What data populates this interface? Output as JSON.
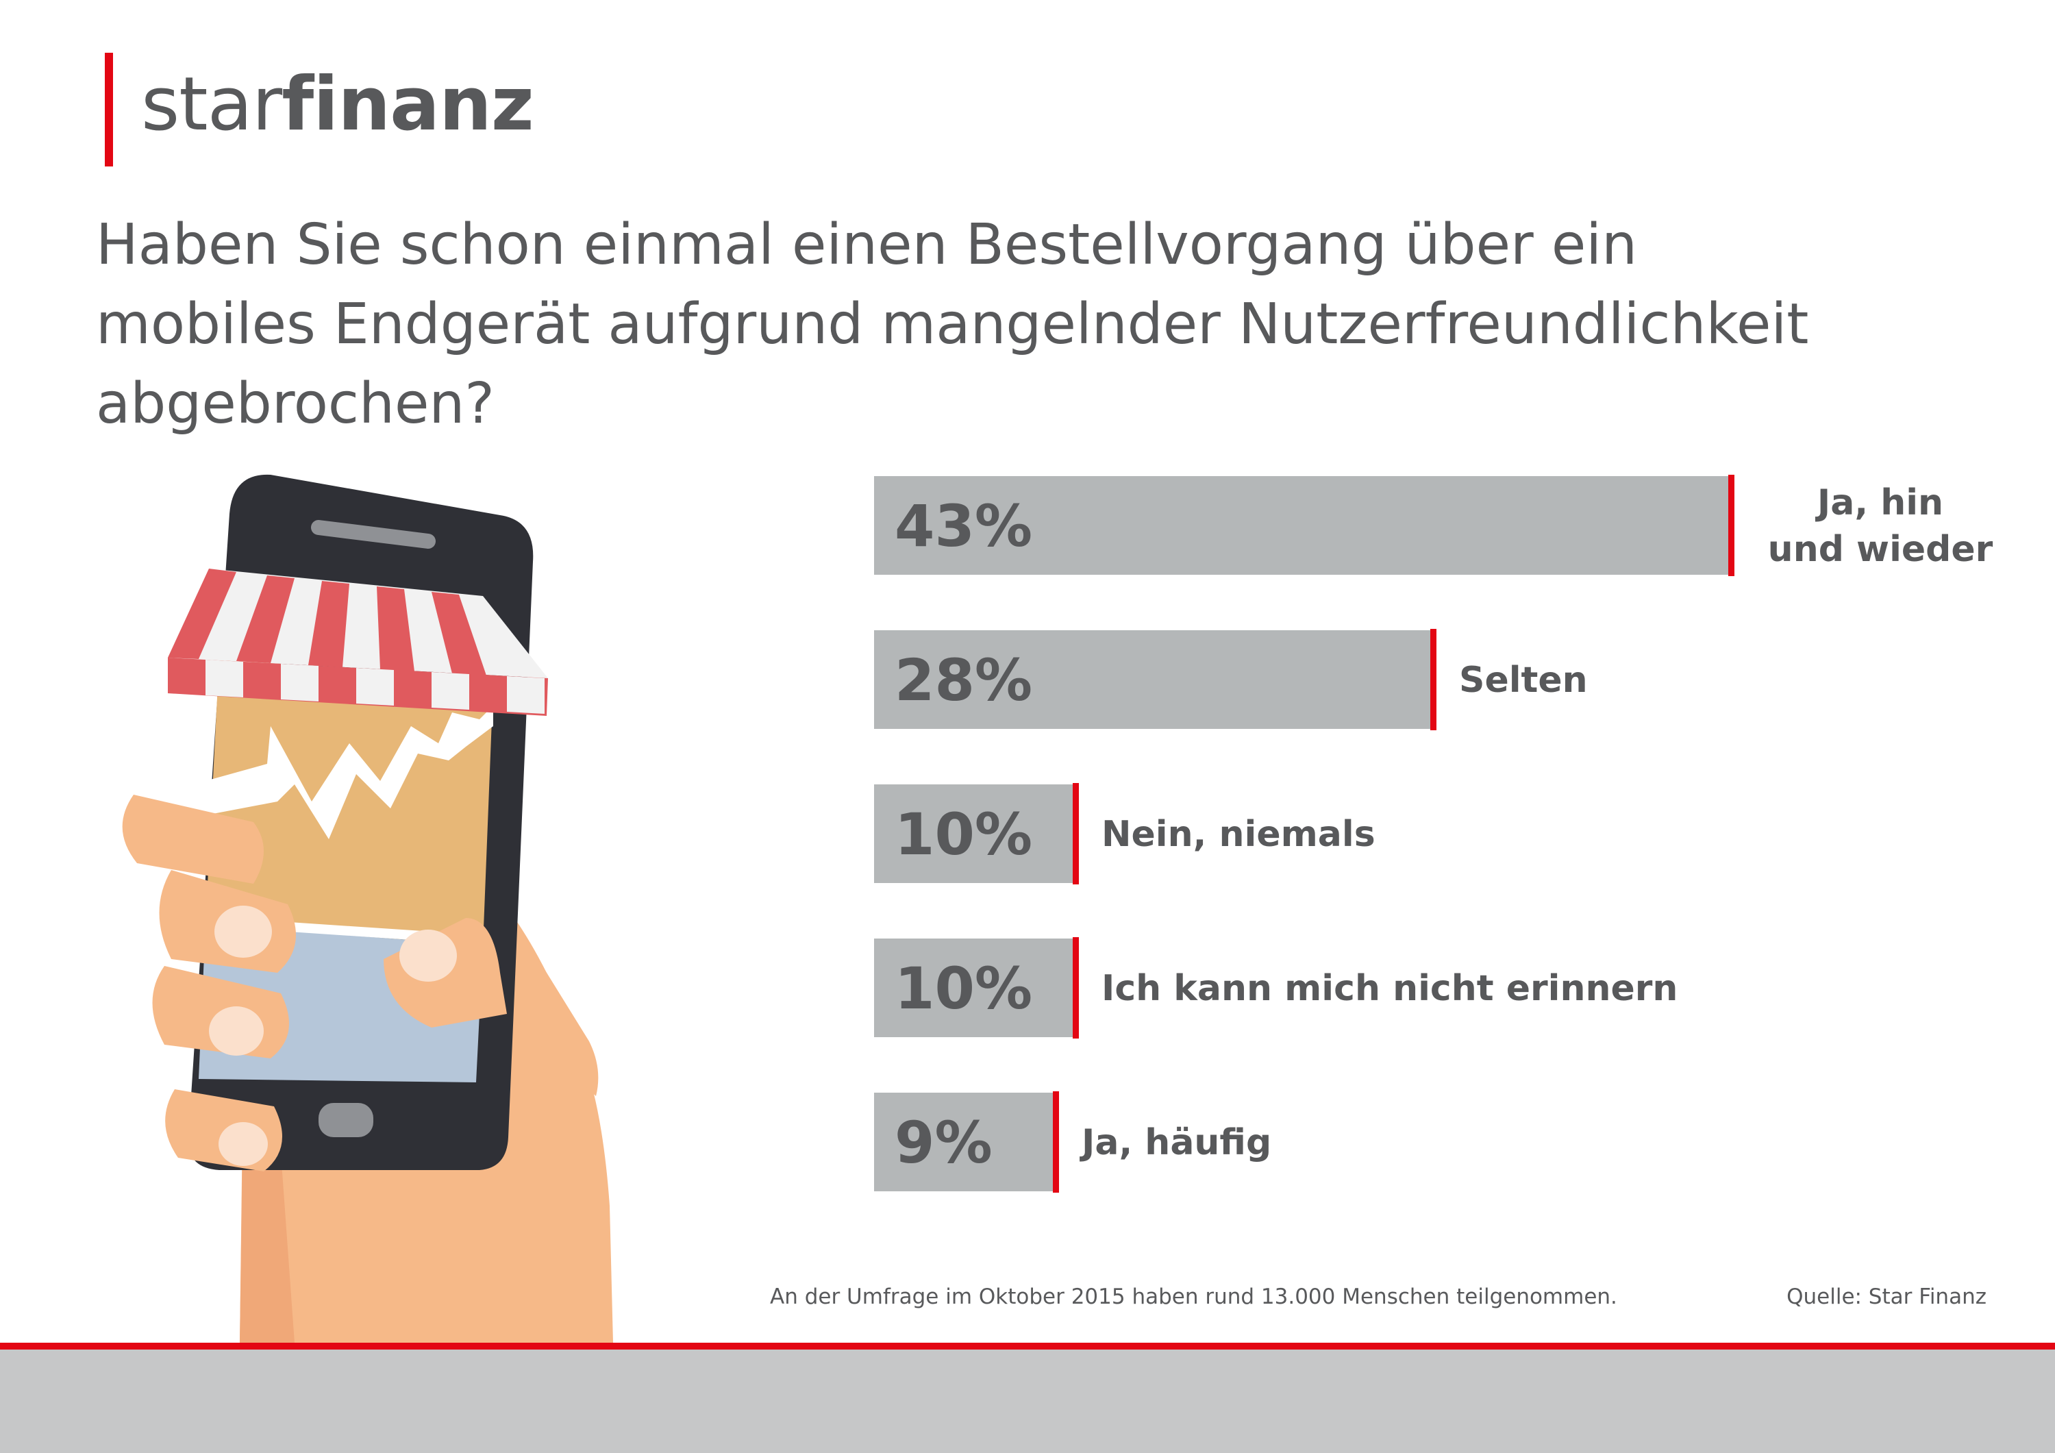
{
  "brand": {
    "name_light": "star",
    "name_bold": "finanz",
    "accent_color": "#e30613"
  },
  "title_lines": [
    "Haben Sie schon einmal einen Bestellvorgang über ein",
    "mobiles Endgerät aufgrund mangelnder Nutzerfreundlichkeit",
    "abgebrochen?"
  ],
  "chart_data": {
    "type": "bar",
    "orientation": "horizontal",
    "unit": "%",
    "bar_color": "#b4b7b8",
    "marker_color": "#e30613",
    "categories": [
      [
        "Ja, hin",
        "und wieder"
      ],
      [
        "Selten"
      ],
      [
        "Nein, niemals"
      ],
      [
        "Ich kann mich nicht erinnern"
      ],
      [
        "Ja, häufig"
      ]
    ],
    "values": [
      43,
      28,
      10,
      10,
      9
    ],
    "value_labels": [
      "43%",
      "28%",
      "10%",
      "10%",
      "9%"
    ]
  },
  "footnote": "An der Umfrage im Oktober 2015 haben rund 13.000 Menschen teilgenommen.",
  "source": "Quelle: Star Finanz",
  "illustration": {
    "icons": [
      "smartphone-icon",
      "shop-awning-icon",
      "hand-icon"
    ],
    "colors": {
      "phone": "#2f3036",
      "screen_top": "#e7b777",
      "screen_bottom": "#b5c6d9",
      "awning_red": "#e05a5e",
      "awning_white": "#f2f2f2",
      "skin": "#f6b988",
      "skin_shadow": "#f0a878",
      "nail": "#fbe0cc"
    }
  }
}
